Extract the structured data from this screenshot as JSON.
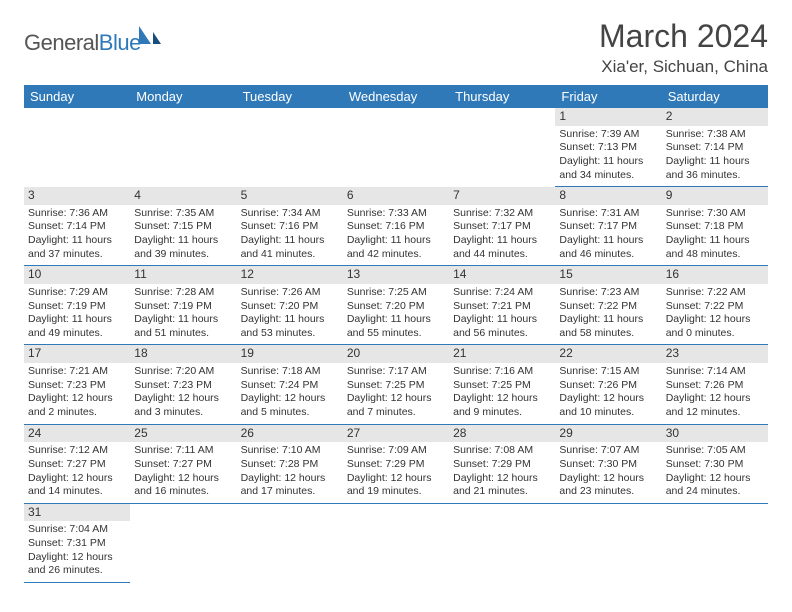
{
  "logo": {
    "text1": "General",
    "text2": "Blue"
  },
  "title": {
    "month": "March 2024",
    "location": "Xia'er, Sichuan, China"
  },
  "colors": {
    "header_bg": "#2f79b9",
    "header_text": "#ffffff",
    "daynum_bg": "#e6e6e6",
    "row_divider": "#2f79b9",
    "logo_gray": "#555555",
    "logo_blue": "#2f79b9"
  },
  "weekdays": [
    "Sunday",
    "Monday",
    "Tuesday",
    "Wednesday",
    "Thursday",
    "Friday",
    "Saturday"
  ],
  "layout": {
    "first_day_col": 5,
    "days_in_month": 31
  },
  "days": {
    "1": {
      "sunrise": "7:39 AM",
      "sunset": "7:13 PM",
      "daylight": "11 hours and 34 minutes."
    },
    "2": {
      "sunrise": "7:38 AM",
      "sunset": "7:14 PM",
      "daylight": "11 hours and 36 minutes."
    },
    "3": {
      "sunrise": "7:36 AM",
      "sunset": "7:14 PM",
      "daylight": "11 hours and 37 minutes."
    },
    "4": {
      "sunrise": "7:35 AM",
      "sunset": "7:15 PM",
      "daylight": "11 hours and 39 minutes."
    },
    "5": {
      "sunrise": "7:34 AM",
      "sunset": "7:16 PM",
      "daylight": "11 hours and 41 minutes."
    },
    "6": {
      "sunrise": "7:33 AM",
      "sunset": "7:16 PM",
      "daylight": "11 hours and 42 minutes."
    },
    "7": {
      "sunrise": "7:32 AM",
      "sunset": "7:17 PM",
      "daylight": "11 hours and 44 minutes."
    },
    "8": {
      "sunrise": "7:31 AM",
      "sunset": "7:17 PM",
      "daylight": "11 hours and 46 minutes."
    },
    "9": {
      "sunrise": "7:30 AM",
      "sunset": "7:18 PM",
      "daylight": "11 hours and 48 minutes."
    },
    "10": {
      "sunrise": "7:29 AM",
      "sunset": "7:19 PM",
      "daylight": "11 hours and 49 minutes."
    },
    "11": {
      "sunrise": "7:28 AM",
      "sunset": "7:19 PM",
      "daylight": "11 hours and 51 minutes."
    },
    "12": {
      "sunrise": "7:26 AM",
      "sunset": "7:20 PM",
      "daylight": "11 hours and 53 minutes."
    },
    "13": {
      "sunrise": "7:25 AM",
      "sunset": "7:20 PM",
      "daylight": "11 hours and 55 minutes."
    },
    "14": {
      "sunrise": "7:24 AM",
      "sunset": "7:21 PM",
      "daylight": "11 hours and 56 minutes."
    },
    "15": {
      "sunrise": "7:23 AM",
      "sunset": "7:22 PM",
      "daylight": "11 hours and 58 minutes."
    },
    "16": {
      "sunrise": "7:22 AM",
      "sunset": "7:22 PM",
      "daylight": "12 hours and 0 minutes."
    },
    "17": {
      "sunrise": "7:21 AM",
      "sunset": "7:23 PM",
      "daylight": "12 hours and 2 minutes."
    },
    "18": {
      "sunrise": "7:20 AM",
      "sunset": "7:23 PM",
      "daylight": "12 hours and 3 minutes."
    },
    "19": {
      "sunrise": "7:18 AM",
      "sunset": "7:24 PM",
      "daylight": "12 hours and 5 minutes."
    },
    "20": {
      "sunrise": "7:17 AM",
      "sunset": "7:25 PM",
      "daylight": "12 hours and 7 minutes."
    },
    "21": {
      "sunrise": "7:16 AM",
      "sunset": "7:25 PM",
      "daylight": "12 hours and 9 minutes."
    },
    "22": {
      "sunrise": "7:15 AM",
      "sunset": "7:26 PM",
      "daylight": "12 hours and 10 minutes."
    },
    "23": {
      "sunrise": "7:14 AM",
      "sunset": "7:26 PM",
      "daylight": "12 hours and 12 minutes."
    },
    "24": {
      "sunrise": "7:12 AM",
      "sunset": "7:27 PM",
      "daylight": "12 hours and 14 minutes."
    },
    "25": {
      "sunrise": "7:11 AM",
      "sunset": "7:27 PM",
      "daylight": "12 hours and 16 minutes."
    },
    "26": {
      "sunrise": "7:10 AM",
      "sunset": "7:28 PM",
      "daylight": "12 hours and 17 minutes."
    },
    "27": {
      "sunrise": "7:09 AM",
      "sunset": "7:29 PM",
      "daylight": "12 hours and 19 minutes."
    },
    "28": {
      "sunrise": "7:08 AM",
      "sunset": "7:29 PM",
      "daylight": "12 hours and 21 minutes."
    },
    "29": {
      "sunrise": "7:07 AM",
      "sunset": "7:30 PM",
      "daylight": "12 hours and 23 minutes."
    },
    "30": {
      "sunrise": "7:05 AM",
      "sunset": "7:30 PM",
      "daylight": "12 hours and 24 minutes."
    },
    "31": {
      "sunrise": "7:04 AM",
      "sunset": "7:31 PM",
      "daylight": "12 hours and 26 minutes."
    }
  },
  "labels": {
    "sunrise": "Sunrise: ",
    "sunset": "Sunset: ",
    "daylight": "Daylight: "
  }
}
